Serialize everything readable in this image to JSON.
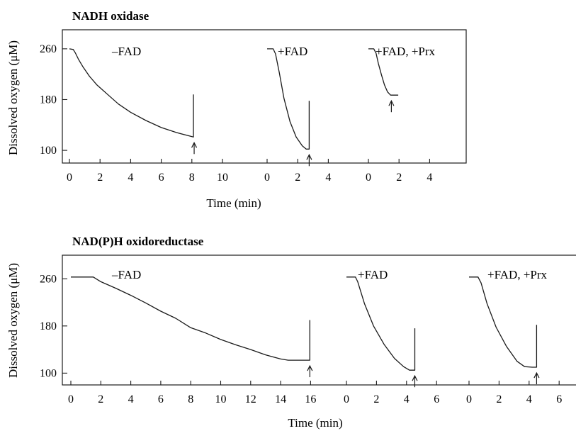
{
  "chart_data": [
    {
      "type": "line",
      "title": "NADH oxidase",
      "xlabel": "Time (min)",
      "ylabel": "Dissolved oxygen (μM)",
      "yticks": [
        100,
        180,
        260
      ],
      "ylim": [
        80,
        290
      ],
      "panels": [
        {
          "label": "–FAD",
          "xticks": [
            0,
            2,
            4,
            6,
            8,
            10
          ],
          "xlim": [
            -0.3,
            10.6
          ],
          "x": [
            0,
            0.25,
            0.4,
            0.6,
            0.9,
            1.3,
            1.8,
            2.5,
            3.2,
            4,
            5,
            6,
            7,
            8.1,
            8.1
          ],
          "y": [
            260,
            259,
            253,
            243,
            231,
            217,
            203,
            188,
            173,
            160,
            147,
            136,
            128,
            121,
            188
          ],
          "arrow_x": 8.15
        },
        {
          "label": "+FAD",
          "xticks": [
            0,
            2,
            4
          ],
          "xlim": [
            -0.3,
            4.6
          ],
          "x": [
            0,
            0.4,
            0.55,
            0.8,
            1.1,
            1.5,
            1.9,
            2.3,
            2.55,
            2.75,
            2.75
          ],
          "y": [
            260,
            260,
            252,
            222,
            182,
            145,
            121,
            107,
            102,
            102,
            178
          ],
          "arrow_x": 2.75
        },
        {
          "label": "+FAD, +Prx",
          "xticks": [
            0,
            2,
            4
          ],
          "xlim": [
            -0.3,
            4.6
          ],
          "x": [
            0,
            0.35,
            0.5,
            0.65,
            0.85,
            1.05,
            1.25,
            1.45,
            1.7,
            1.95
          ],
          "y": [
            260,
            260,
            253,
            237,
            219,
            203,
            192,
            187,
            187,
            187
          ],
          "arrow_x": 1.5
        }
      ]
    },
    {
      "type": "line",
      "title": "NAD(P)H oxidoreductase",
      "xlabel": "Time (min)",
      "ylabel": "Dissolved oxygen (μM)",
      "yticks": [
        100,
        180,
        260
      ],
      "ylim": [
        80,
        300
      ],
      "panels": [
        {
          "label": "–FAD",
          "xticks": [
            0,
            2,
            4,
            6,
            8,
            10,
            12,
            14,
            16
          ],
          "xlim": [
            -0.3,
            16.5
          ],
          "x": [
            0,
            1.5,
            2,
            3,
            4,
            5,
            6,
            7,
            8,
            9,
            10,
            11,
            12,
            13,
            14,
            14.5,
            15.6,
            15.95,
            15.95
          ],
          "y": [
            263,
            263,
            255,
            244,
            232,
            219,
            205,
            193,
            177,
            168,
            157,
            148,
            140,
            131,
            124,
            122,
            122,
            122,
            190
          ],
          "arrow_x": 15.95
        },
        {
          "label": "+FAD",
          "xticks": [
            0,
            2,
            4,
            6
          ],
          "xlim": [
            -0.3,
            6.6
          ],
          "x": [
            0,
            0.6,
            0.75,
            1.2,
            1.8,
            2.5,
            3.2,
            3.8,
            4.2,
            4.55,
            4.55
          ],
          "y": [
            263,
            263,
            255,
            218,
            180,
            149,
            125,
            111,
            105,
            105,
            176
          ],
          "arrow_x": 4.55
        },
        {
          "label": "+FAD, +Prx",
          "xticks": [
            0,
            2,
            4,
            6
          ],
          "xlim": [
            -0.3,
            6.6
          ],
          "x": [
            0,
            0.6,
            0.8,
            1.2,
            1.8,
            2.5,
            3.2,
            3.7,
            4.2,
            4.5,
            4.5
          ],
          "y": [
            263,
            263,
            253,
            218,
            178,
            145,
            120,
            111,
            110,
            110,
            182
          ],
          "arrow_x": 4.5
        }
      ]
    }
  ]
}
